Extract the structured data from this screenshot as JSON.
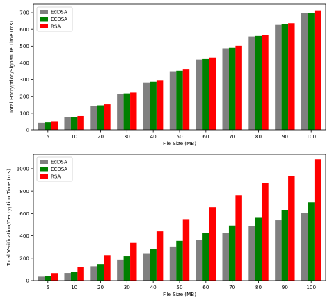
{
  "chart_data": [
    {
      "type": "bar",
      "categories": [
        "5",
        "10",
        "20",
        "30",
        "40",
        "50",
        "60",
        "70",
        "80",
        "90",
        "100"
      ],
      "xlabel": "File Size (MB)",
      "ylabel": "Total Encryption/Signature Time (ms)",
      "ylim": [
        0,
        750
      ],
      "yticks": [
        0,
        100,
        200,
        300,
        400,
        500,
        600,
        700
      ],
      "legend": "top-left",
      "grid": false,
      "series": [
        {
          "name": "EdDSA",
          "color": "#808080",
          "values": [
            42,
            75,
            145,
            213,
            283,
            350,
            420,
            487,
            557,
            627,
            697
          ]
        },
        {
          "name": "ECDSA",
          "color": "#008000",
          "values": [
            45,
            77,
            147,
            217,
            287,
            353,
            423,
            490,
            560,
            630,
            700
          ]
        },
        {
          "name": "RSA",
          "color": "#ff0000",
          "values": [
            52,
            83,
            153,
            222,
            297,
            360,
            432,
            502,
            567,
            637,
            710
          ]
        }
      ]
    },
    {
      "type": "bar",
      "categories": [
        "5",
        "10",
        "20",
        "30",
        "40",
        "50",
        "60",
        "70",
        "80",
        "90",
        "100"
      ],
      "xlabel": "File Size (MB)",
      "ylabel": "Total Verification/Decryption Time (ms)",
      "ylim": [
        0,
        1130
      ],
      "yticks": [
        0,
        200,
        400,
        600,
        800,
        1000
      ],
      "legend": "top-left",
      "grid": false,
      "series": [
        {
          "name": "EdDSA",
          "color": "#808080",
          "values": [
            35,
            68,
            128,
            187,
            245,
            305,
            366,
            425,
            485,
            540,
            605
          ]
        },
        {
          "name": "ECDSA",
          "color": "#008000",
          "values": [
            42,
            75,
            148,
            217,
            282,
            355,
            425,
            492,
            562,
            630,
            700
          ]
        },
        {
          "name": "RSA",
          "color": "#ff0000",
          "values": [
            67,
            120,
            228,
            337,
            440,
            550,
            657,
            762,
            870,
            932,
            1085
          ]
        }
      ]
    }
  ]
}
